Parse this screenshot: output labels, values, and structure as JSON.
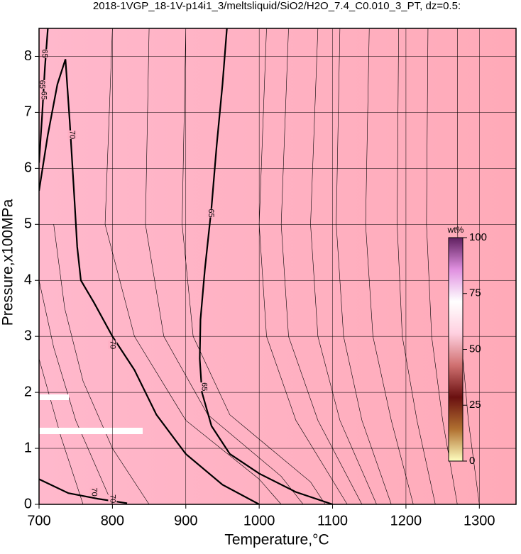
{
  "chart_data": {
    "type": "contour",
    "title": "2018-1VGP_18-1V-p14i1_3/meltsliquid/SiO2/H2O_7.4_C0.010_3_PT, dz=0.5:",
    "xlabel": "Temperature,°C",
    "ylabel": "Pressure,x100MPa",
    "xlim": [
      700,
      1350
    ],
    "ylim": [
      0,
      8.5
    ],
    "xticks": [
      700,
      800,
      900,
      1000,
      1100,
      1200,
      1300
    ],
    "yticks": [
      0,
      1,
      2,
      3,
      4,
      5,
      6,
      7,
      8
    ],
    "grid": true,
    "contours": [
      {
        "level": 70,
        "x": [
          700,
          712,
          725,
          736,
          742,
          748,
          752,
          757,
          775,
          800,
          830,
          860,
          900,
          950,
          1000
        ],
        "y": [
          5.6,
          6.6,
          7.5,
          7.95,
          6.8,
          5.5,
          4.6,
          4.0,
          3.6,
          3.0,
          2.4,
          1.6,
          0.9,
          0.35,
          0
        ],
        "labels": [
          [
            745,
            6.6
          ],
          [
            800,
            2.85
          ]
        ]
      },
      {
        "level": 65,
        "x": [
          956,
          950,
          942,
          935,
          926,
          920,
          919,
          922,
          935,
          960,
          1000,
          1050,
          1100
        ],
        "y": [
          8.5,
          7.5,
          6.4,
          5.3,
          4.2,
          3.3,
          2.6,
          2.0,
          1.4,
          0.9,
          0.55,
          0.22,
          0
        ],
        "labels": [
          [
            934,
            5.2
          ],
          [
            925,
            2.1
          ]
        ]
      },
      {
        "level": 65,
        "x": [
          712,
          708,
          704,
          700
        ],
        "y": [
          8.5,
          7.8,
          6.9,
          6.1
        ],
        "labels": [
          [
            707,
            8.05
          ],
          [
            704,
            7.5
          ],
          [
            706,
            7.3
          ]
        ]
      },
      {
        "level": 70,
        "x": [
          700,
          740,
          780,
          820
        ],
        "y": [
          0.45,
          0.2,
          0.1,
          0.02
        ],
        "labels": [
          [
            775,
            0.22
          ],
          [
            800,
            0.1
          ]
        ]
      }
    ],
    "thin_contours": [
      {
        "x": [
          800,
          790,
          830,
          900,
          1000,
          1030
        ],
        "y": [
          8.5,
          5,
          3,
          1.5,
          0.45,
          0
        ]
      },
      {
        "x": [
          850,
          845,
          870,
          930,
          1030,
          1060
        ],
        "y": [
          8.5,
          5,
          3,
          1.6,
          0.5,
          0
        ]
      },
      {
        "x": [
          900,
          895,
          910,
          960,
          1070,
          1090
        ],
        "y": [
          8.5,
          5,
          3,
          1.6,
          0.4,
          0
        ]
      },
      {
        "x": [
          1010,
          1000,
          1010,
          1050,
          1120
        ],
        "y": [
          8.5,
          5,
          3,
          1.5,
          0
        ]
      },
      {
        "x": [
          1040,
          1030,
          1040,
          1080,
          1140
        ],
        "y": [
          8.5,
          5,
          3,
          1.5,
          0
        ]
      },
      {
        "x": [
          1080,
          1070,
          1080,
          1110,
          1160
        ],
        "y": [
          8.5,
          5,
          3,
          1.5,
          0
        ]
      },
      {
        "x": [
          1110,
          1105,
          1115,
          1140,
          1180
        ],
        "y": [
          8.5,
          5,
          3,
          1.5,
          0
        ]
      },
      {
        "x": [
          1150,
          1145,
          1155,
          1180,
          1210
        ],
        "y": [
          8.5,
          5,
          3,
          1.5,
          0
        ]
      },
      {
        "x": [
          1190,
          1188,
          1195,
          1215,
          1240
        ],
        "y": [
          8.5,
          5,
          3,
          1.5,
          0
        ]
      },
      {
        "x": [
          1230,
          1228,
          1235,
          1250,
          1270
        ],
        "y": [
          8.5,
          5,
          3,
          1.5,
          0
        ]
      },
      {
        "x": [
          1270,
          1270,
          1275,
          1285,
          1300
        ],
        "y": [
          8.5,
          5,
          3,
          1.5,
          0
        ]
      },
      {
        "x": [
          720,
          735,
          760,
          800,
          850
        ],
        "y": [
          5,
          3.5,
          2.2,
          1,
          0
        ]
      },
      {
        "x": [
          700,
          720,
          750,
          800
        ],
        "y": [
          4,
          2.8,
          1.5,
          0
        ]
      },
      {
        "x": [
          700,
          730,
          760
        ],
        "y": [
          2.6,
          1.2,
          0
        ]
      }
    ],
    "colorbar": {
      "label": "wt%",
      "lim": [
        0,
        100
      ],
      "ticks": [
        0,
        25,
        50,
        75,
        100
      ],
      "colors": [
        "#ffffc0",
        "#b07030",
        "#6a1010",
        "#d07070",
        "#ffd0e0",
        "#ffffff",
        "#e090e0",
        "#602060"
      ]
    },
    "background": [
      "#ffb8cc",
      "#ffaab8"
    ]
  }
}
